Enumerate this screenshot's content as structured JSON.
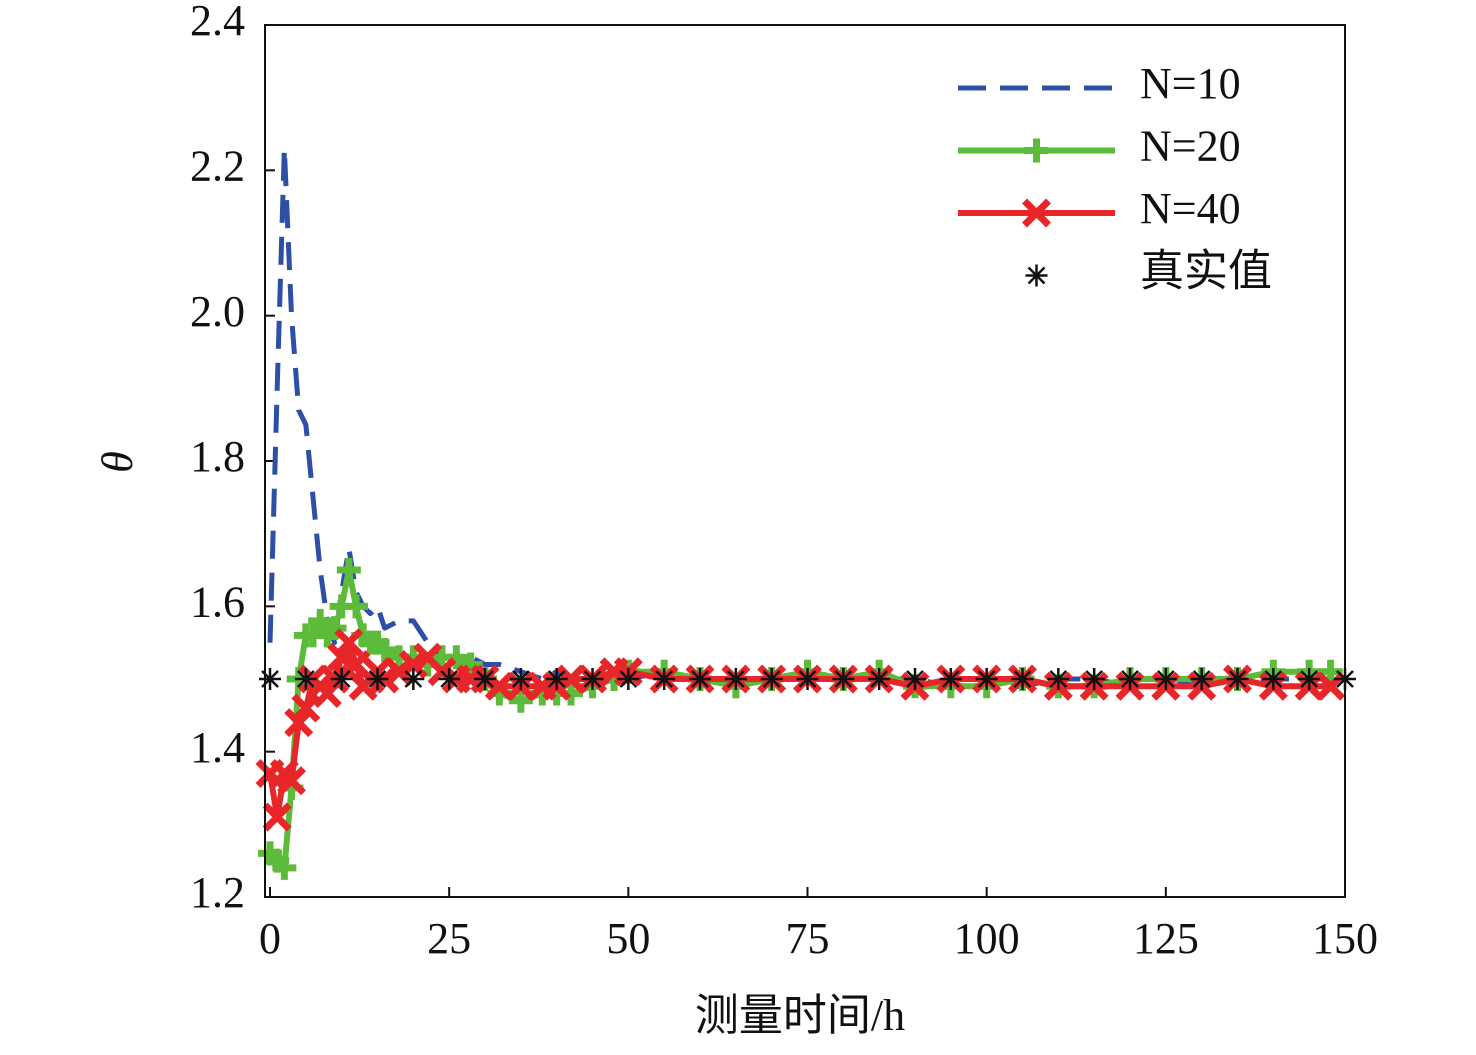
{
  "chart_data": {
    "type": "line",
    "x_label": "测量时间/h",
    "y_label": "θ",
    "x": [
      0,
      1,
      2,
      3,
      4,
      5,
      6,
      7,
      8,
      9,
      10,
      11,
      12,
      13,
      14,
      15,
      16,
      18,
      20,
      22,
      24,
      26,
      28,
      30,
      32,
      35,
      38,
      40,
      42,
      45,
      48,
      50,
      55,
      60,
      65,
      70,
      75,
      80,
      85,
      90,
      95,
      100,
      105,
      110,
      115,
      120,
      125,
      130,
      135,
      140,
      145,
      148
    ],
    "series": [
      {
        "name": "N=10",
        "color": "#2e4fa6",
        "dash": true,
        "marker": "none",
        "values": [
          1.55,
          1.9,
          2.23,
          2.0,
          1.87,
          1.85,
          1.75,
          1.65,
          1.58,
          1.55,
          1.62,
          1.68,
          1.62,
          1.6,
          1.59,
          1.6,
          1.57,
          1.58,
          1.58,
          1.55,
          1.53,
          1.53,
          1.53,
          1.52,
          1.52,
          1.51,
          1.5,
          1.51,
          1.5,
          1.5,
          1.5,
          1.5,
          1.51,
          1.5,
          1.5,
          1.5,
          1.5,
          1.5,
          1.5,
          1.5,
          1.49,
          1.49,
          1.49,
          1.5,
          1.5,
          1.49,
          1.49,
          1.5,
          1.5,
          1.5,
          1.5,
          1.5
        ]
      },
      {
        "name": "N=20",
        "color": "#5dbb3a",
        "dash": false,
        "marker": "plus",
        "values": [
          1.26,
          1.25,
          1.24,
          1.35,
          1.5,
          1.56,
          1.56,
          1.58,
          1.56,
          1.57,
          1.6,
          1.65,
          1.6,
          1.56,
          1.55,
          1.55,
          1.54,
          1.53,
          1.53,
          1.52,
          1.53,
          1.53,
          1.52,
          1.5,
          1.48,
          1.47,
          1.48,
          1.48,
          1.48,
          1.49,
          1.5,
          1.51,
          1.51,
          1.5,
          1.49,
          1.5,
          1.51,
          1.5,
          1.51,
          1.49,
          1.49,
          1.49,
          1.5,
          1.49,
          1.49,
          1.5,
          1.5,
          1.5,
          1.5,
          1.51,
          1.51,
          1.51
        ]
      },
      {
        "name": "N=40",
        "color": "#e8262a",
        "dash": false,
        "marker": "cross",
        "values": [
          1.37,
          1.31,
          1.37,
          1.36,
          1.44,
          1.46,
          1.5,
          1.49,
          1.48,
          1.5,
          1.53,
          1.55,
          1.52,
          1.49,
          1.5,
          1.51,
          1.5,
          1.51,
          1.52,
          1.53,
          1.51,
          1.5,
          1.5,
          1.5,
          1.49,
          1.49,
          1.49,
          1.49,
          1.5,
          1.5,
          1.51,
          1.51,
          1.5,
          1.5,
          1.5,
          1.5,
          1.5,
          1.5,
          1.5,
          1.49,
          1.5,
          1.5,
          1.5,
          1.49,
          1.49,
          1.49,
          1.49,
          1.49,
          1.5,
          1.49,
          1.49,
          1.49
        ]
      },
      {
        "name": "真实值",
        "color": "#111111",
        "dash": false,
        "marker": "asterisk",
        "line": false,
        "x": [
          0,
          5,
          10,
          15,
          20,
          25,
          30,
          35,
          40,
          45,
          50,
          55,
          60,
          65,
          70,
          75,
          80,
          85,
          90,
          95,
          100,
          105,
          110,
          115,
          120,
          125,
          130,
          135,
          140,
          145,
          150
        ],
        "values": [
          1.5,
          1.5,
          1.5,
          1.5,
          1.5,
          1.5,
          1.5,
          1.5,
          1.5,
          1.5,
          1.5,
          1.5,
          1.5,
          1.5,
          1.5,
          1.5,
          1.5,
          1.5,
          1.5,
          1.5,
          1.5,
          1.5,
          1.5,
          1.5,
          1.5,
          1.5,
          1.5,
          1.5,
          1.5,
          1.5,
          1.5
        ]
      }
    ],
    "xlim": [
      -0.7,
      150
    ],
    "xticks": [
      0,
      25,
      50,
      75,
      100,
      125,
      150
    ],
    "ylim": [
      1.2,
      2.4
    ],
    "yticks": [
      1.2,
      1.4,
      1.6,
      1.8,
      {
        "value": 2,
        "label": "2.0"
      },
      2.2,
      2.4
    ],
    "legend": "upper right"
  }
}
